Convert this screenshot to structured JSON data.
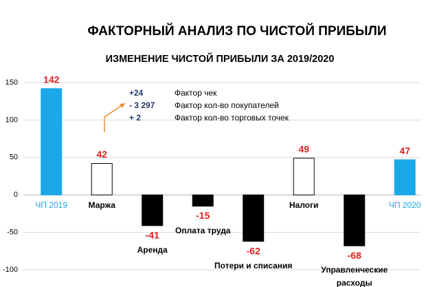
{
  "chart_data": {
    "type": "bar",
    "title": "ФАКТОРНЫЙ АНАЛИЗ ПО ЧИСТОЙ ПРИБЫЛИ",
    "subtitle": "ИЗМЕНЕНИЕ ЧИСТОЙ ПРИБЫЛИ ЗА 2019/2020",
    "categories": [
      "ЧП 2019",
      "Маржа",
      "Аренда",
      "Оплата труда",
      "Потери и списания",
      "Налоги",
      "Управленческие расходы",
      "ЧП 2020"
    ],
    "values": [
      142,
      42,
      -41,
      -15,
      -62,
      49,
      -68,
      47
    ],
    "colors": [
      "#1aa8e8",
      "#ffffff",
      "#000000",
      "#000000",
      "#000000",
      "#ffffff",
      "#000000",
      "#1aa8e8"
    ],
    "label_color": "#e41e1e",
    "ylim": [
      -100,
      150
    ],
    "yticks": [
      -100,
      -50,
      0,
      50,
      100,
      150
    ],
    "annotations": [
      {
        "value": "+24",
        "label": "Фактор чек"
      },
      {
        "value": "- 3 297",
        "label": "Фактор кол-во покупателей"
      },
      {
        "value": "+   2",
        "label": "Фактор кол-во торговых точек"
      }
    ]
  }
}
